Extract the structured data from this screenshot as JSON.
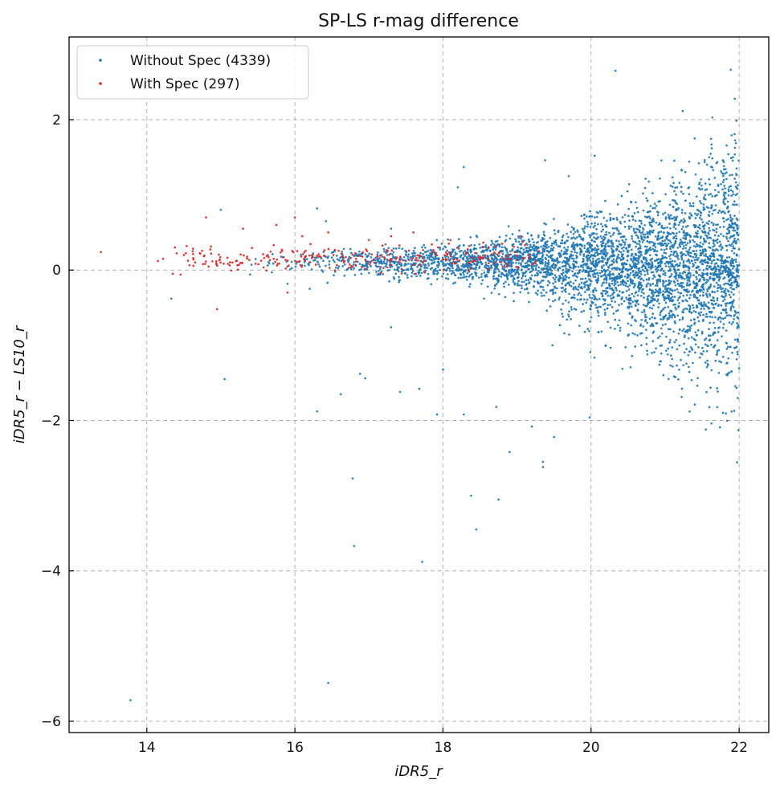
{
  "chart_data": {
    "type": "scatter",
    "title": "SP-LS r-mag difference",
    "xlabel": "iDR5_r",
    "ylabel": "iDR5_r − LS10_r",
    "xlim": [
      12.95,
      22.4
    ],
    "ylim": [
      -6.15,
      3.1
    ],
    "xticks": [
      14,
      16,
      18,
      20,
      22
    ],
    "yticks": [
      -6,
      -4,
      -2,
      0,
      2
    ],
    "xtick_labels": [
      "14",
      "16",
      "18",
      "20",
      "22"
    ],
    "ytick_labels": [
      "−6",
      "−4",
      "−2",
      "0",
      "2"
    ],
    "grid": true,
    "legend_position": "top-left",
    "series": [
      {
        "name": "Without Spec (4339)",
        "color": "#1f77b4",
        "count": 4339,
        "outliers": [
          [
            13.78,
            -5.72
          ],
          [
            14.33,
            -0.38
          ],
          [
            15.05,
            -1.45
          ],
          [
            15.0,
            0.8
          ],
          [
            16.3,
            -1.88
          ],
          [
            16.45,
            -5.49
          ],
          [
            16.78,
            -2.77
          ],
          [
            16.8,
            -3.67
          ],
          [
            16.88,
            -1.38
          ],
          [
            16.95,
            -1.44
          ],
          [
            17.3,
            -0.76
          ],
          [
            17.42,
            -1.62
          ],
          [
            17.68,
            -1.58
          ],
          [
            17.72,
            -3.88
          ],
          [
            17.92,
            -1.92
          ],
          [
            18.0,
            -1.32
          ],
          [
            18.28,
            -1.92
          ],
          [
            18.38,
            -3.0
          ],
          [
            18.45,
            -3.45
          ],
          [
            18.75,
            -3.05
          ],
          [
            18.9,
            -2.42
          ],
          [
            19.2,
            -2.08
          ],
          [
            19.35,
            -2.55
          ],
          [
            19.35,
            -2.62
          ],
          [
            19.5,
            -2.22
          ],
          [
            19.98,
            -1.96
          ],
          [
            20.33,
            2.65
          ],
          [
            21.4,
            1.75
          ],
          [
            18.28,
            1.37
          ],
          [
            19.38,
            1.46
          ],
          [
            20.05,
            1.52
          ],
          [
            16.42,
            0.65
          ],
          [
            16.3,
            0.82
          ],
          [
            16.62,
            -1.65
          ],
          [
            18.72,
            -1.82
          ],
          [
            17.3,
            0.55
          ],
          [
            15.9,
            -0.18
          ],
          [
            16.2,
            -0.25
          ],
          [
            18.2,
            1.1
          ],
          [
            19.7,
            1.25
          ]
        ],
        "bulk": {
          "x_range": [
            15.2,
            22.0
          ],
          "center_y": 0.12
        }
      },
      {
        "name": "With Spec (297)",
        "color": "#d62728",
        "count": 297,
        "outliers": [
          [
            13.38,
            0.24
          ],
          [
            14.15,
            0.12
          ],
          [
            14.22,
            0.15
          ],
          [
            14.35,
            -0.05
          ],
          [
            14.38,
            0.3
          ],
          [
            14.5,
            0.2
          ],
          [
            14.62,
            0.25
          ],
          [
            14.8,
            0.7
          ],
          [
            14.95,
            -0.52
          ],
          [
            15.3,
            0.55
          ],
          [
            16.0,
            0.7
          ],
          [
            15.9,
            -0.3
          ],
          [
            16.45,
            0.5
          ],
          [
            17.0,
            0.4
          ],
          [
            17.3,
            0.45
          ],
          [
            17.6,
            0.5
          ],
          [
            18.1,
            0.4
          ],
          [
            18.8,
            0.35
          ],
          [
            19.05,
            0.45
          ],
          [
            19.3,
            0.25
          ],
          [
            15.75,
            0.6
          ],
          [
            16.1,
            0.45
          ]
        ],
        "bulk": {
          "x_range": [
            14.2,
            19.3
          ],
          "center_y": 0.16
        }
      }
    ]
  }
}
